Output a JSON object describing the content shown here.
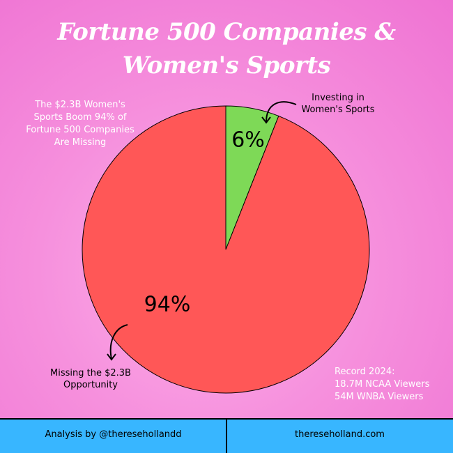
{
  "chart_data": {
    "type": "pie",
    "title": "Fortune 500 Companies & Women's Sports",
    "categories": [
      "Investing in Women's Sports",
      "Missing the $2.3B Opportunity"
    ],
    "values": [
      6,
      94
    ],
    "value_labels": [
      "6%",
      "94%"
    ],
    "colors": [
      "#7ed957",
      "#ff5757"
    ],
    "annotations": [
      "The $2.3B Women's Sports Boom 94% of Fortune 500 Companies Are Missing",
      [
        "Record 2024:",
        "18.7M NCAA Viewers",
        "54M WNBA Viewers"
      ]
    ]
  },
  "footer": {
    "left": "Analysis by @theresehollandd",
    "right": "thereseholland.com"
  }
}
